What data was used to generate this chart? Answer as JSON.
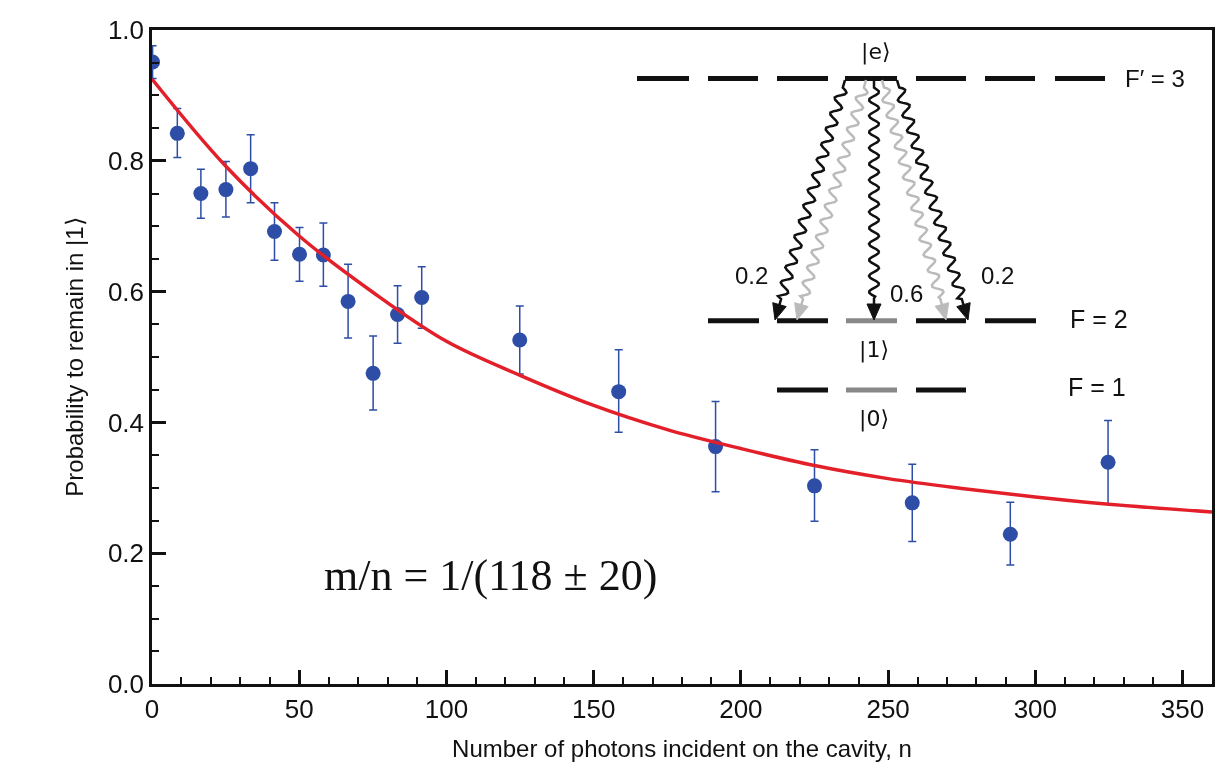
{
  "chart_data": {
    "type": "scatter",
    "xlabel": "Number of photons incident on the cavity, n",
    "ylabel": "Probability to remain in |1⟩",
    "xlim": [
      0,
      360
    ],
    "ylim": [
      0,
      1
    ],
    "xticks": [
      0,
      {
        "value": 10,
        "label": null
      },
      {
        "value": 20,
        "label": null
      },
      {
        "value": 30,
        "label": null
      },
      {
        "value": 40,
        "label": null
      },
      50,
      {
        "value": 60,
        "label": null
      },
      {
        "value": 70,
        "label": null
      },
      {
        "value": 80,
        "label": null
      },
      {
        "value": 90,
        "label": null
      },
      100,
      {
        "value": 110,
        "label": null
      },
      {
        "value": 120,
        "label": null
      },
      {
        "value": 130,
        "label": null
      },
      {
        "value": 140,
        "label": null
      },
      150,
      {
        "value": 160,
        "label": null
      },
      {
        "value": 170,
        "label": null
      },
      {
        "value": 180,
        "label": null
      },
      {
        "value": 190,
        "label": null
      },
      200,
      {
        "value": 210,
        "label": null
      },
      {
        "value": 220,
        "label": null
      },
      {
        "value": 230,
        "label": null
      },
      {
        "value": 240,
        "label": null
      },
      250,
      {
        "value": 260,
        "label": null
      },
      {
        "value": 270,
        "label": null
      },
      {
        "value": 280,
        "label": null
      },
      {
        "value": 290,
        "label": null
      },
      300,
      {
        "value": 310,
        "label": null
      },
      {
        "value": 320,
        "label": null
      },
      {
        "value": 330,
        "label": null
      },
      {
        "value": 340,
        "label": null
      },
      350
    ],
    "yticks": [
      {
        "value": 0,
        "label": "0.0"
      },
      {
        "value": 0.05,
        "label": null
      },
      {
        "value": 0.1,
        "label": null
      },
      {
        "value": 0.15,
        "label": null
      },
      {
        "value": 0.2,
        "label": "0.2"
      },
      {
        "value": 0.25,
        "label": null
      },
      {
        "value": 0.3,
        "label": null
      },
      {
        "value": 0.35,
        "label": null
      },
      {
        "value": 0.4,
        "label": "0.4"
      },
      {
        "value": 0.45,
        "label": null
      },
      {
        "value": 0.5,
        "label": null
      },
      {
        "value": 0.55,
        "label": null
      },
      {
        "value": 0.6,
        "label": "0.6"
      },
      {
        "value": 0.65,
        "label": null
      },
      {
        "value": 0.7,
        "label": null
      },
      {
        "value": 0.75,
        "label": null
      },
      {
        "value": 0.8,
        "label": "0.8"
      },
      {
        "value": 0.85,
        "label": null
      },
      {
        "value": 0.9,
        "label": null
      },
      {
        "value": 0.95,
        "label": null
      },
      {
        "value": 1.0,
        "label": "1.0"
      }
    ],
    "grid": false,
    "series": [
      {
        "marker": "circle",
        "color": "#2d4da6",
        "x": [
          0.2,
          8.6,
          16.6,
          25.1,
          33.5,
          41.6,
          50.1,
          58.2,
          66.6,
          75.1,
          83.4,
          91.6,
          124.9,
          158.5,
          191.4,
          225,
          258.2,
          291.5,
          324.7
        ],
        "values": [
          0.951,
          0.842,
          0.75,
          0.756,
          0.788,
          0.692,
          0.657,
          0.656,
          0.585,
          0.475,
          0.565,
          0.591,
          0.526,
          0.447,
          0.363,
          0.303,
          0.277,
          0.229,
          0.339
        ],
        "errors": [
          0.025,
          [
            0.805,
            0.88
          ],
          [
            0.712,
            0.787
          ],
          [
            0.714,
            0.799
          ],
          [
            0.736,
            0.84
          ],
          [
            0.648,
            0.736
          ],
          [
            0.616,
            0.698
          ],
          [
            0.608,
            0.705
          ],
          [
            0.529,
            0.642
          ],
          [
            0.419,
            0.532
          ],
          [
            0.521,
            0.609
          ],
          [
            0.544,
            0.638
          ],
          [
            0.474,
            0.578
          ],
          [
            0.385,
            0.511
          ],
          [
            0.294,
            0.432
          ],
          [
            0.249,
            0.358
          ],
          [
            0.218,
            0.336
          ],
          [
            0.182,
            0.278
          ],
          [
            0.275,
            0.403
          ]
        ]
      },
      {
        "type": "line",
        "color": "#e3202a",
        "x": [
          0,
          25,
          50,
          75,
          100,
          125,
          150,
          175,
          200,
          225,
          250,
          275,
          300,
          325,
          360
        ],
        "values": [
          0.925,
          0.792,
          0.685,
          0.599,
          0.524,
          0.472,
          0.426,
          0.389,
          0.36,
          0.334,
          0.314,
          0.299,
          0.286,
          0.275,
          0.263
        ]
      }
    ],
    "annotations": [
      "m/n = 1/(118 ± 20)",
      "|e⟩",
      "F′ = 3",
      "F = 2",
      "F = 1",
      "|1⟩",
      "|0⟩",
      "0.2",
      "0.6",
      "0.2"
    ]
  }
}
